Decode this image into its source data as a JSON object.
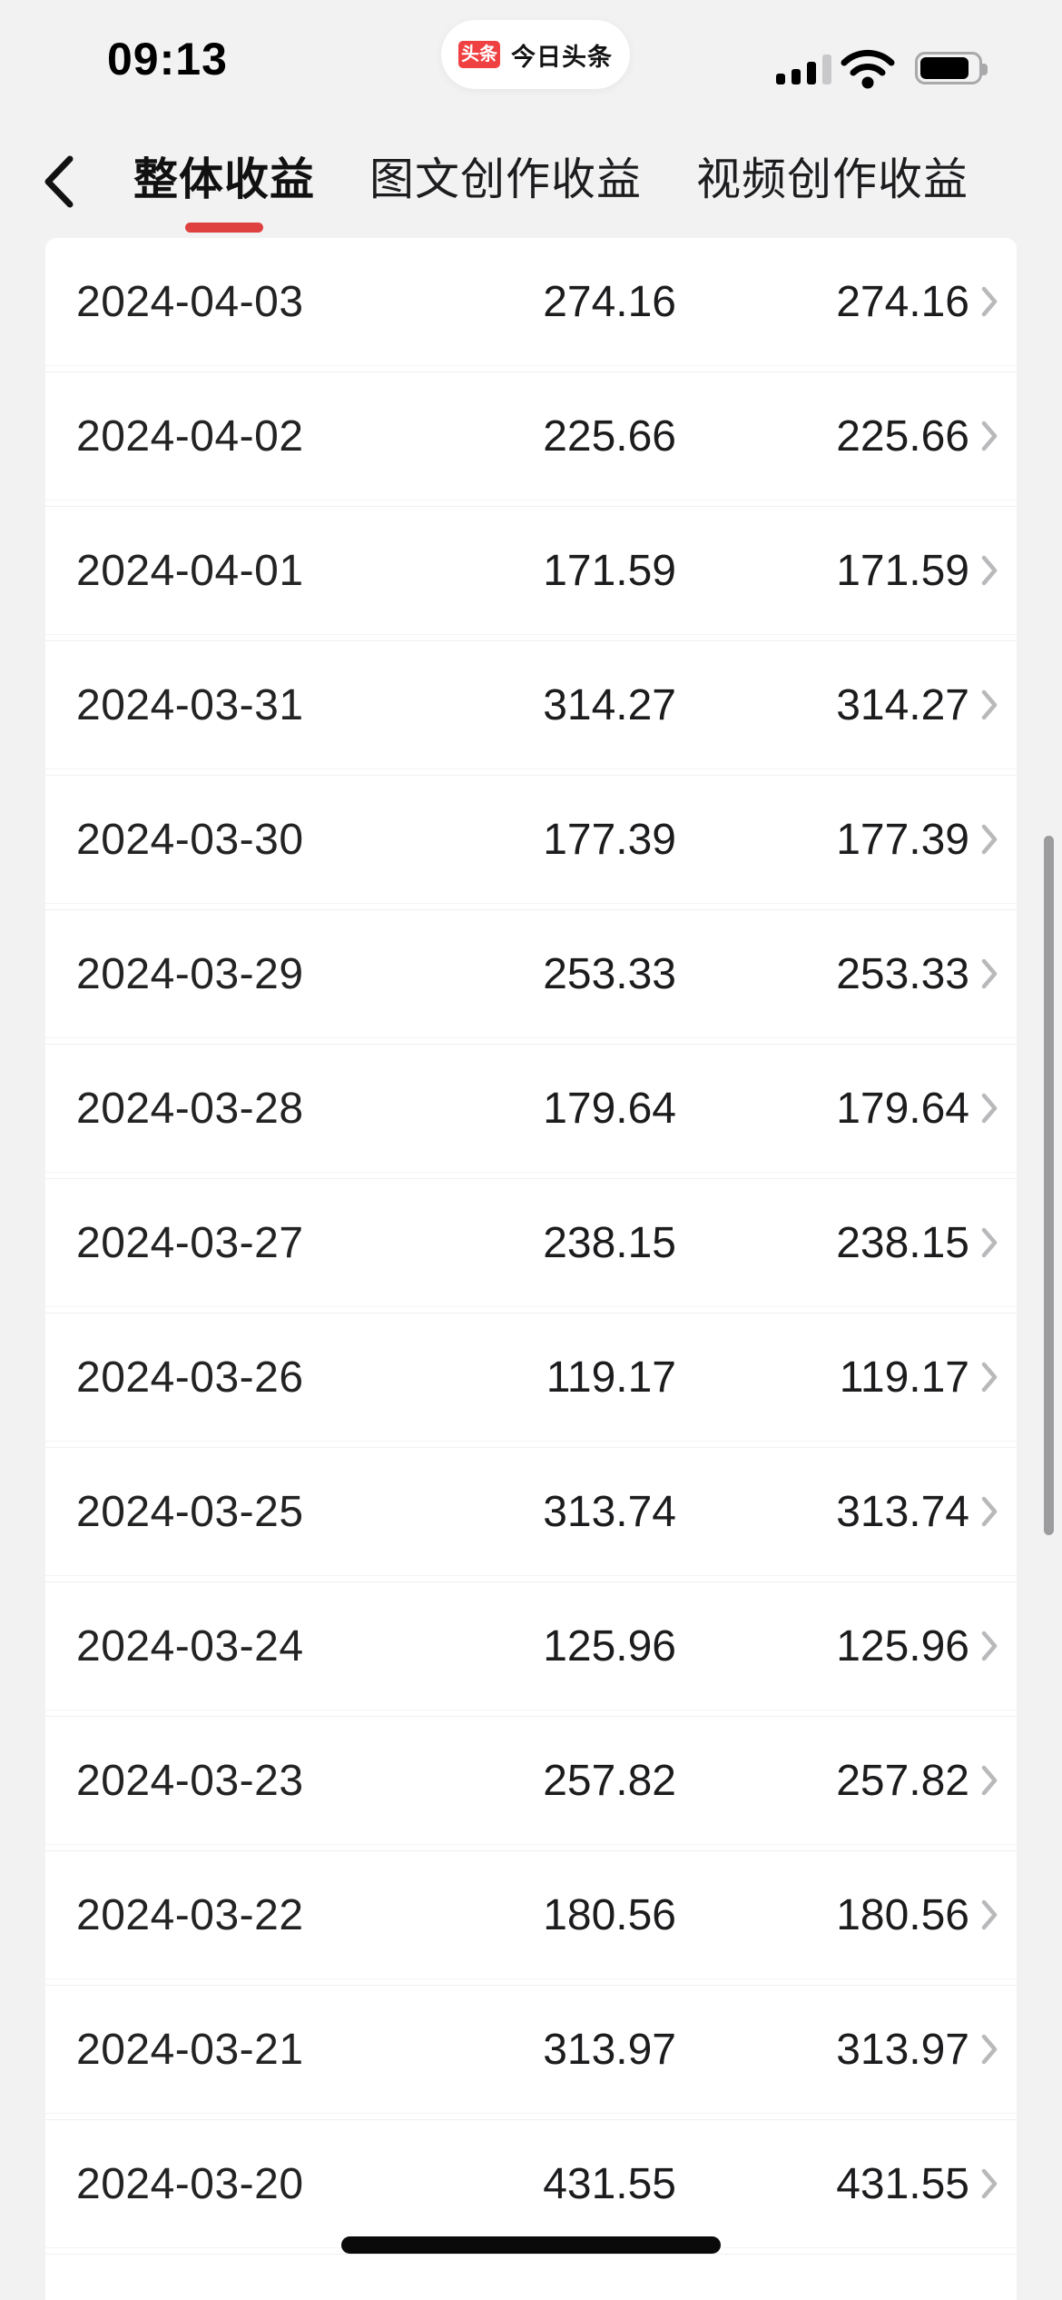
{
  "status_bar": {
    "time": "09:13",
    "pill": {
      "logo_text": "头条",
      "app_name": "今日头条"
    },
    "signal_filled_bars": 3,
    "signal_total_bars": 4,
    "battery_fill_ratio": 0.85
  },
  "header": {
    "back_icon": "chevron-left",
    "tabs": [
      {
        "label": "整体收益",
        "selected": true
      },
      {
        "label": "图文创作收益",
        "selected": false
      },
      {
        "label": "视频创作收益",
        "selected": false
      }
    ]
  },
  "table": {
    "row_chevron_icon": "chevron-right",
    "rows": [
      {
        "date": "2024-04-03",
        "values": [
          "274.16",
          "274.16"
        ]
      },
      {
        "date": "2024-04-02",
        "values": [
          "225.66",
          "225.66"
        ]
      },
      {
        "date": "2024-04-01",
        "values": [
          "171.59",
          "171.59"
        ]
      },
      {
        "date": "2024-03-31",
        "values": [
          "314.27",
          "314.27"
        ]
      },
      {
        "date": "2024-03-30",
        "values": [
          "177.39",
          "177.39"
        ]
      },
      {
        "date": "2024-03-29",
        "values": [
          "253.33",
          "253.33"
        ]
      },
      {
        "date": "2024-03-28",
        "values": [
          "179.64",
          "179.64"
        ]
      },
      {
        "date": "2024-03-27",
        "values": [
          "238.15",
          "238.15"
        ]
      },
      {
        "date": "2024-03-26",
        "values": [
          "119.17",
          "119.17"
        ]
      },
      {
        "date": "2024-03-25",
        "values": [
          "313.74",
          "313.74"
        ]
      },
      {
        "date": "2024-03-24",
        "values": [
          "125.96",
          "125.96"
        ]
      },
      {
        "date": "2024-03-23",
        "values": [
          "257.82",
          "257.82"
        ]
      },
      {
        "date": "2024-03-22",
        "values": [
          "180.56",
          "180.56"
        ]
      },
      {
        "date": "2024-03-21",
        "values": [
          "313.97",
          "313.97"
        ]
      },
      {
        "date": "2024-03-20",
        "values": [
          "431.55",
          "431.55"
        ]
      }
    ]
  },
  "colors": {
    "accent_red": "#de4140",
    "logo_red": "#f04142",
    "signal_inactive": "#c8c8ca",
    "row_chevron_gray": "#b9b9bb"
  }
}
